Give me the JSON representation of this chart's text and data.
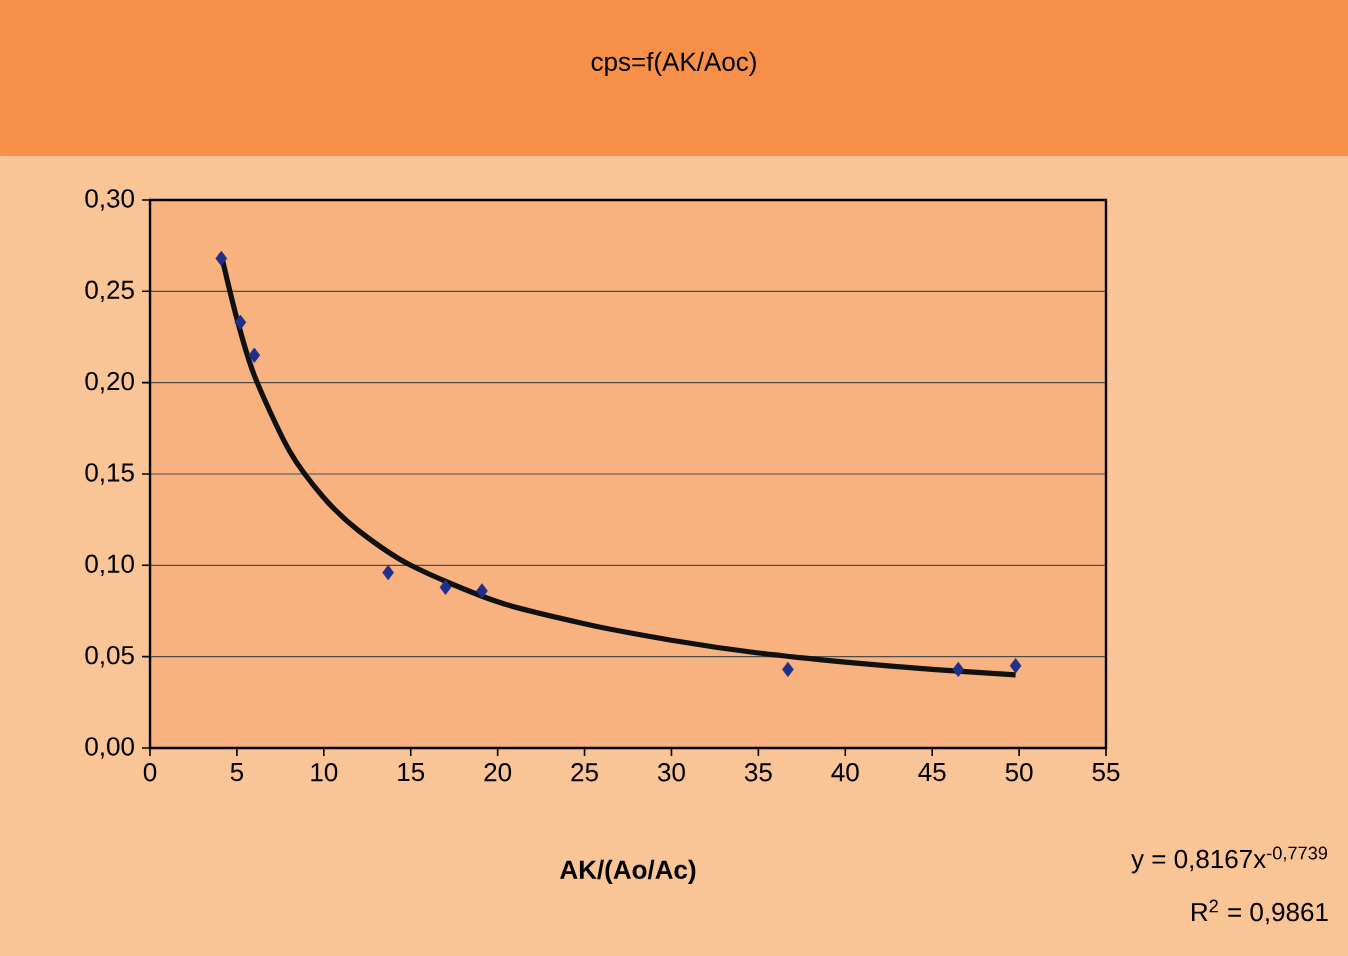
{
  "chart_data": {
    "type": "scatter",
    "title": "cps=f(AK/Aoc)",
    "xlabel": "AK/(Ao/Ac)",
    "xlim": [
      0,
      55
    ],
    "xticks": [
      0,
      5,
      10,
      15,
      20,
      25,
      30,
      35,
      40,
      45,
      50,
      55
    ],
    "ylim": [
      0,
      0.3
    ],
    "yticks": [
      {
        "value": 0,
        "label": "0,00"
      },
      {
        "value": 0.05,
        "label": "0,05"
      },
      {
        "value": 0.1,
        "label": "0,10"
      },
      {
        "value": 0.15,
        "label": "0,15"
      },
      {
        "value": 0.2,
        "label": "0,20"
      },
      {
        "value": 0.25,
        "label": "0,25"
      },
      {
        "value": 0.3,
        "label": "0,30"
      }
    ],
    "grid": "y",
    "series": [
      {
        "marker": "diamond",
        "color": "#1f2f8c",
        "x": [
          4.1,
          5.2,
          6.0,
          13.7,
          17.0,
          19.1,
          36.7,
          46.5,
          49.8
        ],
        "values": [
          0.268,
          0.233,
          0.215,
          0.096,
          0.088,
          0.086,
          0.043,
          0.043,
          0.045
        ]
      },
      {
        "type": "line",
        "marker": "none",
        "color": "#111111",
        "x": [
          4.1,
          5,
          6,
          8,
          10,
          12,
          15,
          20,
          25,
          30,
          35,
          40,
          45,
          49.8
        ],
        "values": [
          0.27,
          0.235,
          0.204,
          0.163,
          0.137,
          0.119,
          0.1,
          0.08,
          0.068,
          0.059,
          0.052,
          0.047,
          0.043,
          0.04
        ]
      }
    ],
    "annotations": [
      "y = 0,8167x$^{-0,7739}$",
      "R$^{2}$ = 0,9861"
    ]
  }
}
